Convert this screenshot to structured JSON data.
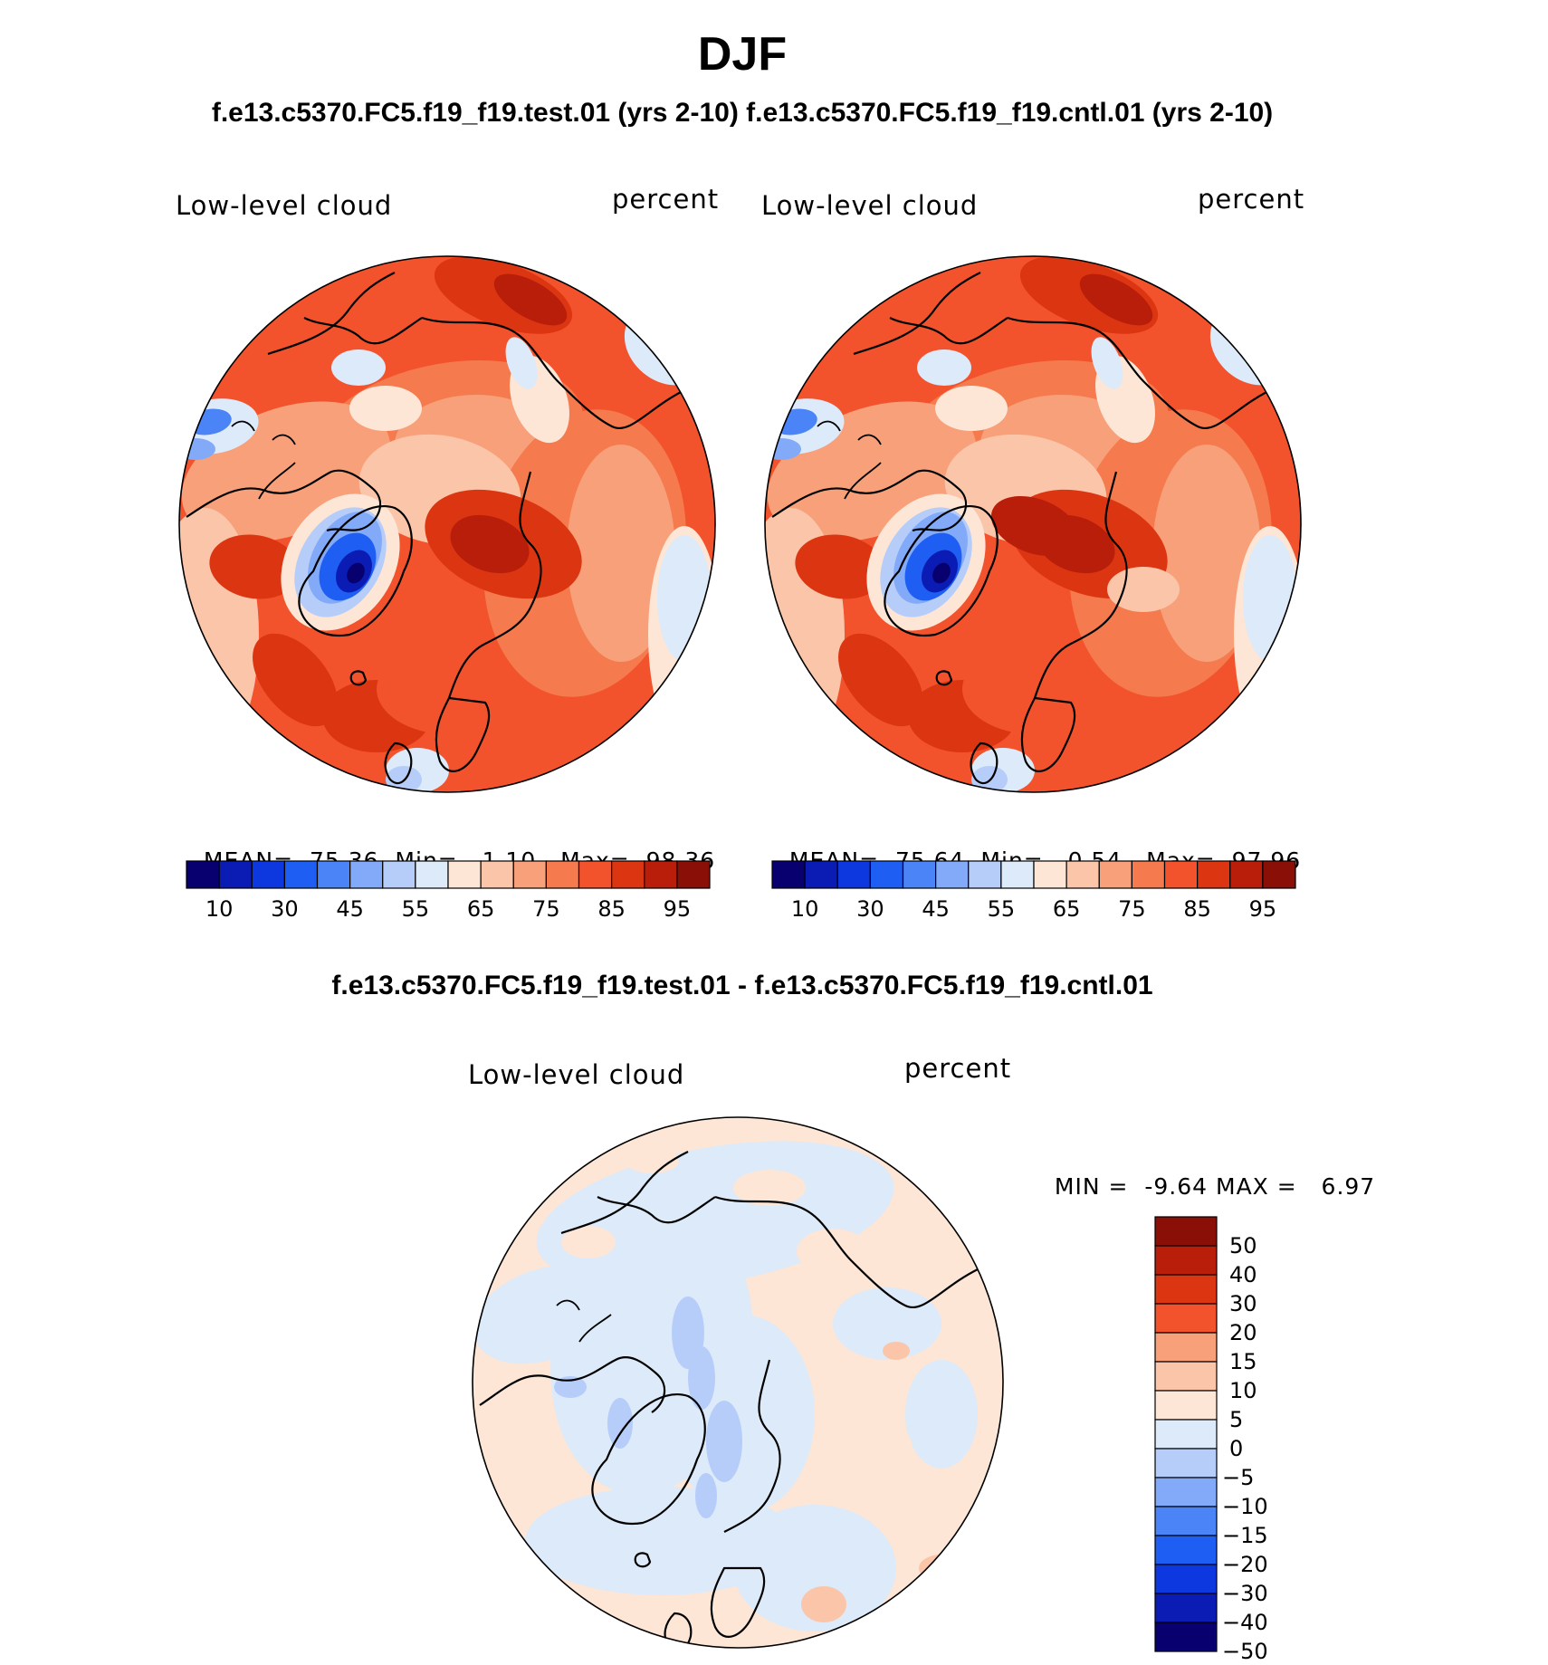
{
  "header": {
    "title": "DJF",
    "subtitle": "f.e13.c5370.FC5.f19_f19.test.01 (yrs 2-10) f.e13.c5370.FC5.f19_f19.cntl.01 (yrs 2-10)",
    "diff_title": "f.e13.c5370.FC5.f19_f19.test.01 - f.e13.c5370.FC5.f19_f19.cntl.01"
  },
  "colors": {
    "abs_scale": [
      "#08006e",
      "#0a1cb4",
      "#0d38e0",
      "#1f5ef2",
      "#4a84f6",
      "#82aaf8",
      "#b6cdf9",
      "#dceaf9",
      "#fde6d6",
      "#fbc5a9",
      "#f7a07a",
      "#f57a4d",
      "#f2532d",
      "#dc3511",
      "#b81e0a",
      "#8a0f06"
    ],
    "diff_scale": [
      "#08006e",
      "#0a1cb4",
      "#0d38e0",
      "#1f5ef2",
      "#4a84f6",
      "#82aaf8",
      "#b6cdf9",
      "#dceaf9",
      "#fde6d6",
      "#fbc5a9",
      "#f7a07a",
      "#f2532d",
      "#dc3511",
      "#b81e0a",
      "#8a0f06"
    ],
    "coast": "#000000"
  },
  "chart_data": [
    {
      "type": "heatmap",
      "projection": "north polar stereographic",
      "field": "Low-level cloud",
      "units": "percent",
      "case": "f.e13.c5370.FC5.f19_f19.test.01 (yrs 2-10)",
      "stats": {
        "mean_label": "MEAN=",
        "mean": "75.36",
        "min_label": "Min=",
        "min": "1.10",
        "max_label": "Max=",
        "max": "98.36"
      },
      "levels": [
        5,
        10,
        20,
        30,
        40,
        45,
        50,
        55,
        60,
        65,
        70,
        75,
        80,
        85,
        90,
        95
      ],
      "colorbar_tick_labels": [
        "10",
        "30",
        "45",
        "55",
        "65",
        "75",
        "85",
        "95"
      ],
      "dominant_range": "70-90 percent",
      "notable_features": [
        "Greenland minimum below 20 percent",
        "northern Siberia and Barents region 85-95 percent"
      ]
    },
    {
      "type": "heatmap",
      "projection": "north polar stereographic",
      "field": "Low-level cloud",
      "units": "percent",
      "case": "f.e13.c5370.FC5.f19_f19.cntl.01 (yrs 2-10)",
      "stats": {
        "mean_label": "MEAN=",
        "mean": "75.64",
        "min_label": "Min=",
        "min": "0.54",
        "max_label": "Max=",
        "max": "97.96"
      },
      "levels": [
        5,
        10,
        20,
        30,
        40,
        45,
        50,
        55,
        60,
        65,
        70,
        75,
        80,
        85,
        90,
        95
      ],
      "colorbar_tick_labels": [
        "10",
        "30",
        "45",
        "55",
        "65",
        "75",
        "85",
        "95"
      ],
      "dominant_range": "70-90 percent",
      "notable_features": [
        "Greenland minimum below 20 percent",
        "northern Siberia and Barents region 85-95 percent"
      ]
    },
    {
      "type": "heatmap",
      "projection": "north polar stereographic",
      "field": "Low-level cloud",
      "units": "percent",
      "case": "f.e13.c5370.FC5.f19_f19.test.01 - f.e13.c5370.FC5.f19_f19.cntl.01",
      "stats": {
        "min_label": "MIN =",
        "min": "-9.64",
        "max_label": "MAX =",
        "max": "6.97"
      },
      "levels": [
        -50,
        -40,
        -30,
        -20,
        -15,
        -10,
        -5,
        0,
        5,
        10,
        15,
        20,
        30,
        40,
        50
      ],
      "colorbar_tick_labels": [
        "50",
        "40",
        "30",
        "20",
        "15",
        "10",
        "5",
        "0",
        "−5",
        "−10",
        "−15",
        "−20",
        "−30",
        "−40",
        "−50"
      ],
      "dominant_range": "-5 to 5 percent",
      "notable_features": [
        "Arctic basin -5 to -10 percent",
        "Atlantic and Eurasia 0 to 5 percent"
      ]
    }
  ]
}
